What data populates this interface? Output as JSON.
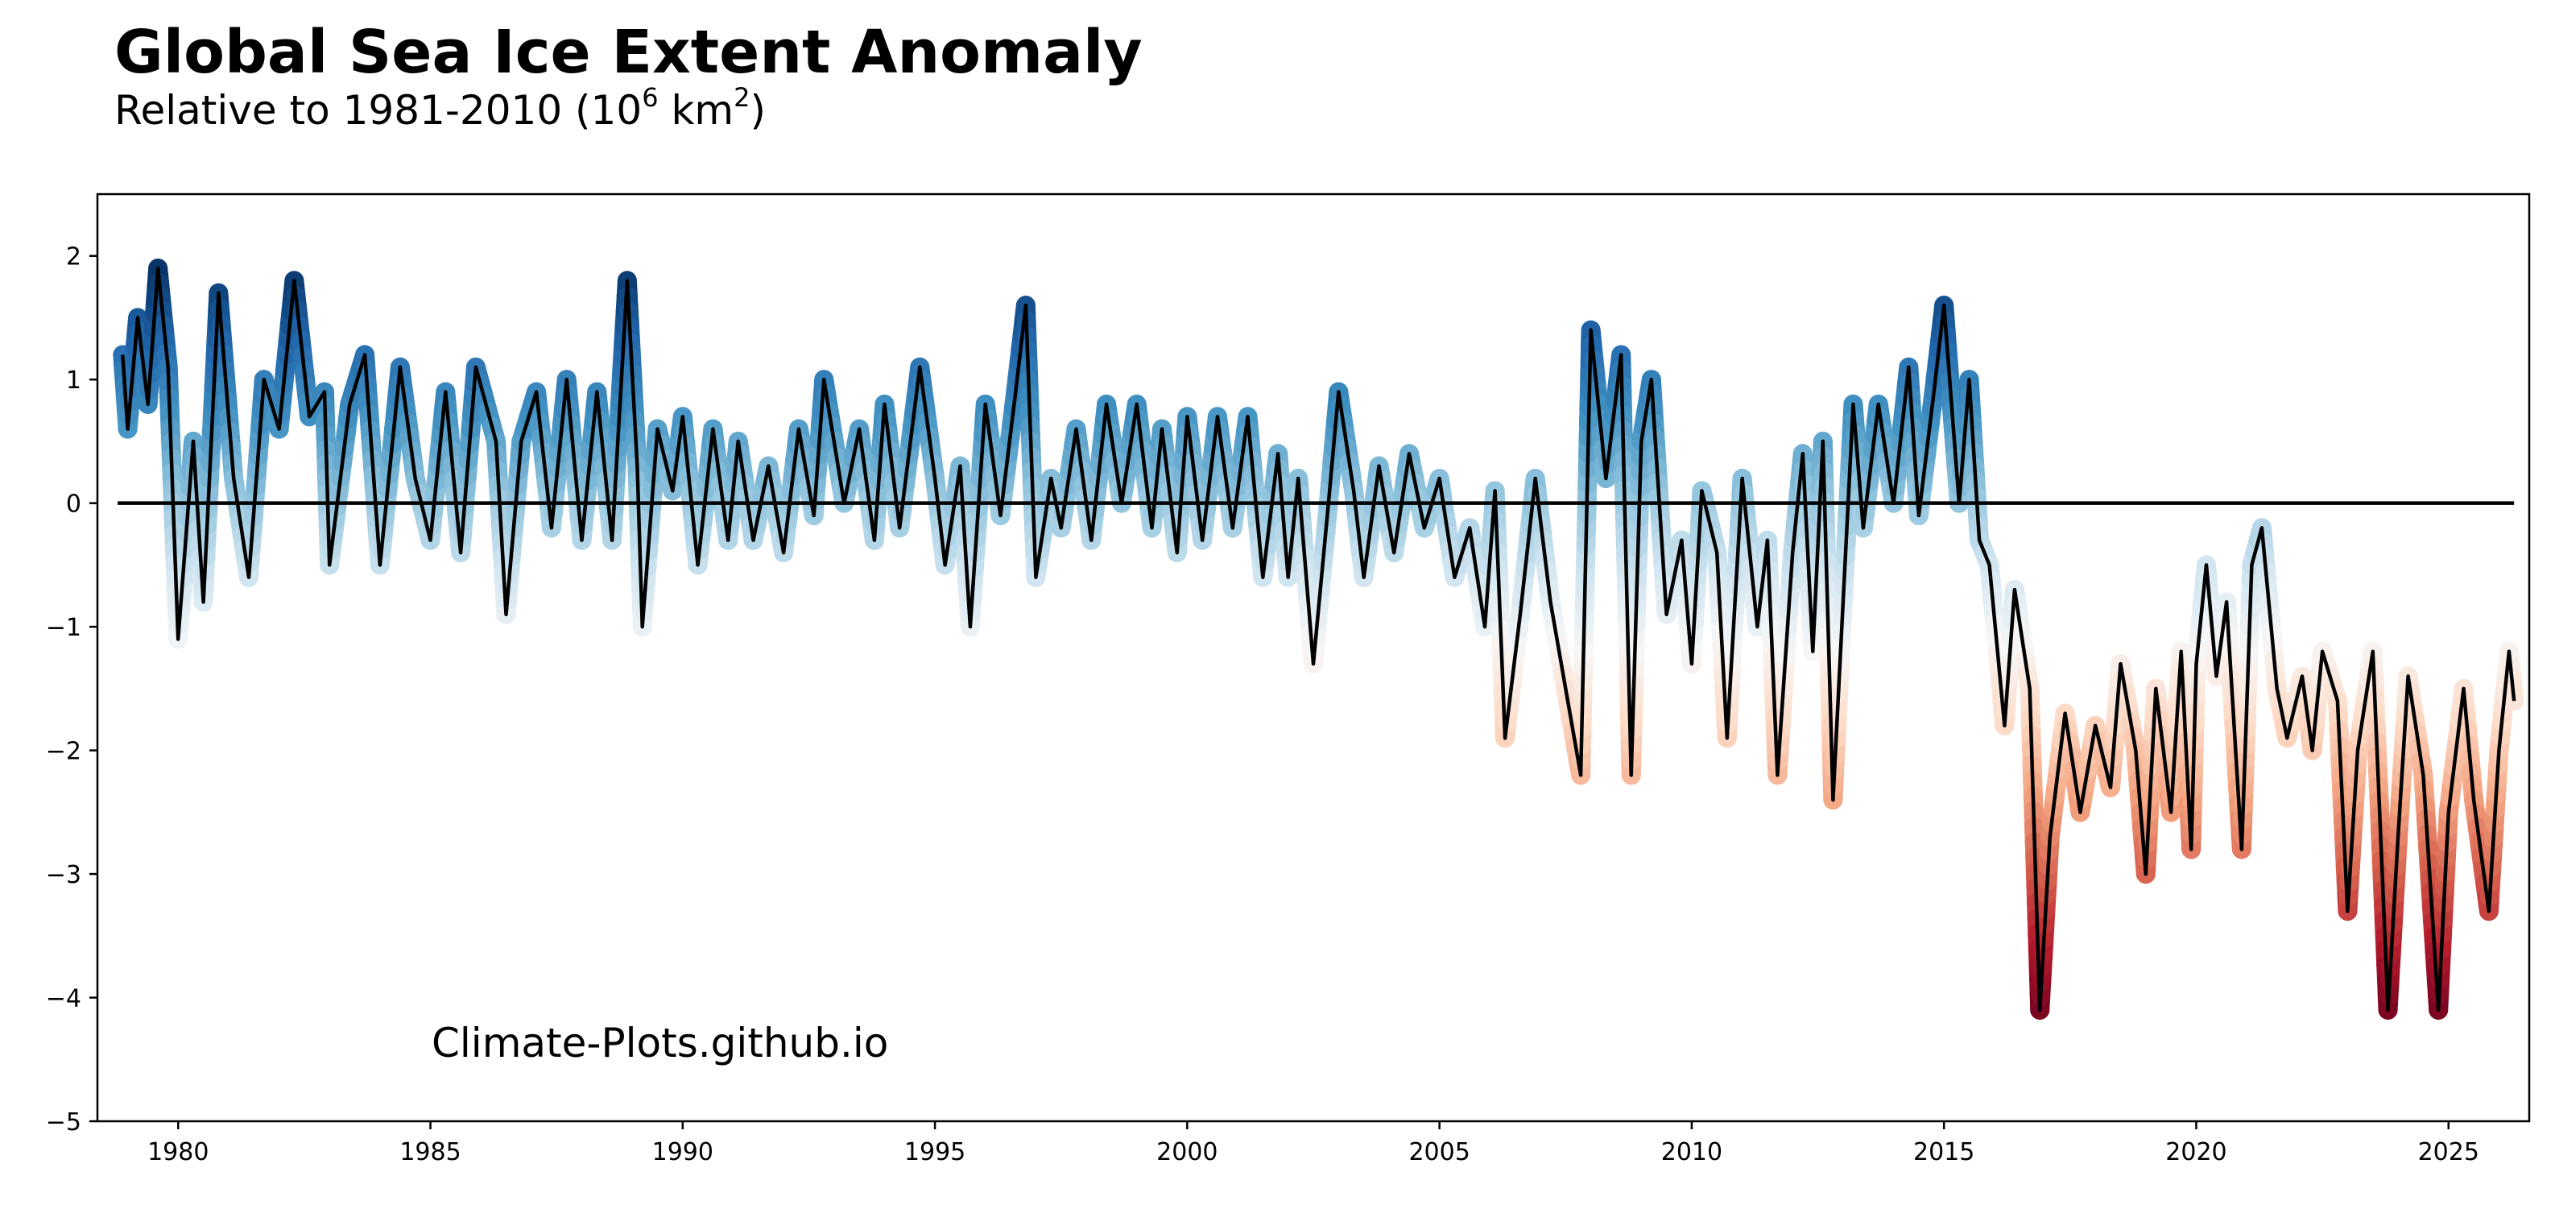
{
  "chart_data": {
    "type": "line",
    "title": "Global Sea Ice Extent Anomaly",
    "subtitle": {
      "prefix": "Relative to 1981-2010 (10",
      "exp1": "6",
      "mid": " km",
      "exp2": "2",
      "suffix": ")"
    },
    "xlabel": "",
    "ylabel": "",
    "xlim": [
      1978.4,
      2026.6
    ],
    "ylim": [
      -5,
      2.5
    ],
    "x_ticks": [
      1980,
      1985,
      1990,
      1995,
      2000,
      2005,
      2010,
      2015,
      2020,
      2025
    ],
    "x_tick_labels": [
      "1980",
      "1985",
      "1990",
      "1995",
      "2000",
      "2005",
      "2010",
      "2015",
      "2020",
      "2025"
    ],
    "y_ticks": [
      -5,
      -4,
      -3,
      -2,
      -1,
      0,
      1,
      2
    ],
    "y_tick_labels": [
      "−5",
      "−4",
      "−3",
      "−2",
      "−1",
      "0",
      "1",
      "2"
    ],
    "reference_line": {
      "y": 0,
      "x_from": 1978.8,
      "x_to": 2026.3
    },
    "colormap": "RdBu",
    "color_range": [
      -4.2,
      1.9
    ],
    "line_color": "#000000",
    "annotation": "Climate-Plots.github.io",
    "grid": false,
    "series": [
      {
        "name": "Global sea ice extent anomaly",
        "points": [
          [
            1978.9,
            1.2
          ],
          [
            1979.0,
            0.6
          ],
          [
            1979.2,
            1.5
          ],
          [
            1979.4,
            0.8
          ],
          [
            1979.6,
            1.9
          ],
          [
            1979.8,
            1.1
          ],
          [
            1980.0,
            -1.1
          ],
          [
            1980.3,
            0.5
          ],
          [
            1980.5,
            -0.8
          ],
          [
            1980.8,
            1.7
          ],
          [
            1981.1,
            0.2
          ],
          [
            1981.4,
            -0.6
          ],
          [
            1981.7,
            1.0
          ],
          [
            1982.0,
            0.6
          ],
          [
            1982.3,
            1.8
          ],
          [
            1982.6,
            0.7
          ],
          [
            1982.9,
            0.9
          ],
          [
            1983.0,
            -0.5
          ],
          [
            1983.4,
            0.8
          ],
          [
            1983.7,
            1.2
          ],
          [
            1984.0,
            -0.5
          ],
          [
            1984.4,
            1.1
          ],
          [
            1984.7,
            0.2
          ],
          [
            1985.0,
            -0.3
          ],
          [
            1985.3,
            0.9
          ],
          [
            1985.6,
            -0.4
          ],
          [
            1985.9,
            1.1
          ],
          [
            1986.3,
            0.5
          ],
          [
            1986.5,
            -0.9
          ],
          [
            1986.8,
            0.5
          ],
          [
            1987.1,
            0.9
          ],
          [
            1987.4,
            -0.2
          ],
          [
            1987.7,
            1.0
          ],
          [
            1988.0,
            -0.3
          ],
          [
            1988.3,
            0.9
          ],
          [
            1988.6,
            -0.3
          ],
          [
            1988.9,
            1.8
          ],
          [
            1989.1,
            0.3
          ],
          [
            1989.2,
            -1.0
          ],
          [
            1989.5,
            0.6
          ],
          [
            1989.8,
            0.1
          ],
          [
            1990.0,
            0.7
          ],
          [
            1990.3,
            -0.5
          ],
          [
            1990.6,
            0.6
          ],
          [
            1990.9,
            -0.3
          ],
          [
            1991.1,
            0.5
          ],
          [
            1991.4,
            -0.3
          ],
          [
            1991.7,
            0.3
          ],
          [
            1992.0,
            -0.4
          ],
          [
            1992.3,
            0.6
          ],
          [
            1992.6,
            -0.1
          ],
          [
            1992.8,
            1.0
          ],
          [
            1993.2,
            0.0
          ],
          [
            1993.5,
            0.6
          ],
          [
            1993.8,
            -0.3
          ],
          [
            1994.0,
            0.8
          ],
          [
            1994.3,
            -0.2
          ],
          [
            1994.7,
            1.1
          ],
          [
            1995.0,
            0.2
          ],
          [
            1995.2,
            -0.5
          ],
          [
            1995.5,
            0.3
          ],
          [
            1995.7,
            -1.0
          ],
          [
            1996.0,
            0.8
          ],
          [
            1996.3,
            -0.1
          ],
          [
            1996.6,
            0.9
          ],
          [
            1996.8,
            1.6
          ],
          [
            1997.0,
            -0.6
          ],
          [
            1997.3,
            0.2
          ],
          [
            1997.5,
            -0.2
          ],
          [
            1997.8,
            0.6
          ],
          [
            1998.1,
            -0.3
          ],
          [
            1998.4,
            0.8
          ],
          [
            1998.7,
            0.0
          ],
          [
            1999.0,
            0.8
          ],
          [
            1999.3,
            -0.2
          ],
          [
            1999.5,
            0.6
          ],
          [
            1999.8,
            -0.4
          ],
          [
            2000.0,
            0.7
          ],
          [
            2000.3,
            -0.3
          ],
          [
            2000.6,
            0.7
          ],
          [
            2000.9,
            -0.2
          ],
          [
            2001.2,
            0.7
          ],
          [
            2001.5,
            -0.6
          ],
          [
            2001.8,
            0.4
          ],
          [
            2002.0,
            -0.6
          ],
          [
            2002.2,
            0.2
          ],
          [
            2002.5,
            -1.3
          ],
          [
            2002.8,
            0.0
          ],
          [
            2003.0,
            0.9
          ],
          [
            2003.3,
            0.1
          ],
          [
            2003.5,
            -0.6
          ],
          [
            2003.8,
            0.3
          ],
          [
            2004.1,
            -0.4
          ],
          [
            2004.4,
            0.4
          ],
          [
            2004.7,
            -0.2
          ],
          [
            2005.0,
            0.2
          ],
          [
            2005.3,
            -0.6
          ],
          [
            2005.6,
            -0.2
          ],
          [
            2005.9,
            -1.0
          ],
          [
            2006.1,
            0.1
          ],
          [
            2006.3,
            -1.9
          ],
          [
            2006.6,
            -0.9
          ],
          [
            2006.9,
            0.2
          ],
          [
            2007.2,
            -0.8
          ],
          [
            2007.5,
            -1.5
          ],
          [
            2007.8,
            -2.2
          ],
          [
            2008.0,
            1.4
          ],
          [
            2008.3,
            0.2
          ],
          [
            2008.6,
            1.2
          ],
          [
            2008.8,
            -2.2
          ],
          [
            2009.0,
            0.5
          ],
          [
            2009.2,
            1.0
          ],
          [
            2009.5,
            -0.9
          ],
          [
            2009.8,
            -0.3
          ],
          [
            2010.0,
            -1.3
          ],
          [
            2010.2,
            0.1
          ],
          [
            2010.5,
            -0.4
          ],
          [
            2010.7,
            -1.9
          ],
          [
            2011.0,
            0.2
          ],
          [
            2011.3,
            -1.0
          ],
          [
            2011.5,
            -0.3
          ],
          [
            2011.7,
            -2.2
          ],
          [
            2012.0,
            -0.4
          ],
          [
            2012.2,
            0.4
          ],
          [
            2012.4,
            -1.2
          ],
          [
            2012.6,
            0.5
          ],
          [
            2012.8,
            -2.4
          ],
          [
            2013.0,
            -0.8
          ],
          [
            2013.2,
            0.8
          ],
          [
            2013.4,
            -0.2
          ],
          [
            2013.7,
            0.8
          ],
          [
            2014.0,
            0.0
          ],
          [
            2014.3,
            1.1
          ],
          [
            2014.5,
            -0.1
          ],
          [
            2014.8,
            0.9
          ],
          [
            2015.0,
            1.6
          ],
          [
            2015.3,
            0.0
          ],
          [
            2015.5,
            1.0
          ],
          [
            2015.7,
            -0.3
          ],
          [
            2015.9,
            -0.5
          ],
          [
            2016.2,
            -1.8
          ],
          [
            2016.4,
            -0.7
          ],
          [
            2016.7,
            -1.5
          ],
          [
            2016.9,
            -4.1
          ],
          [
            2017.1,
            -2.7
          ],
          [
            2017.4,
            -1.7
          ],
          [
            2017.7,
            -2.5
          ],
          [
            2018.0,
            -1.8
          ],
          [
            2018.3,
            -2.3
          ],
          [
            2018.5,
            -1.3
          ],
          [
            2018.8,
            -2.0
          ],
          [
            2019.0,
            -3.0
          ],
          [
            2019.2,
            -1.5
          ],
          [
            2019.5,
            -2.5
          ],
          [
            2019.7,
            -1.2
          ],
          [
            2019.9,
            -2.8
          ],
          [
            2020.0,
            -1.3
          ],
          [
            2020.2,
            -0.5
          ],
          [
            2020.4,
            -1.4
          ],
          [
            2020.6,
            -0.8
          ],
          [
            2020.9,
            -2.8
          ],
          [
            2021.1,
            -0.5
          ],
          [
            2021.3,
            -0.2
          ],
          [
            2021.6,
            -1.5
          ],
          [
            2021.8,
            -1.9
          ],
          [
            2022.1,
            -1.4
          ],
          [
            2022.3,
            -2.0
          ],
          [
            2022.5,
            -1.2
          ],
          [
            2022.8,
            -1.6
          ],
          [
            2023.0,
            -3.3
          ],
          [
            2023.2,
            -2.0
          ],
          [
            2023.5,
            -1.2
          ],
          [
            2023.8,
            -4.1
          ],
          [
            2024.0,
            -2.7
          ],
          [
            2024.2,
            -1.4
          ],
          [
            2024.5,
            -2.2
          ],
          [
            2024.8,
            -4.1
          ],
          [
            2025.0,
            -2.5
          ],
          [
            2025.3,
            -1.5
          ],
          [
            2025.5,
            -2.4
          ],
          [
            2025.8,
            -3.3
          ],
          [
            2026.0,
            -2.0
          ],
          [
            2026.2,
            -1.2
          ],
          [
            2026.3,
            -1.6
          ]
        ]
      }
    ]
  }
}
